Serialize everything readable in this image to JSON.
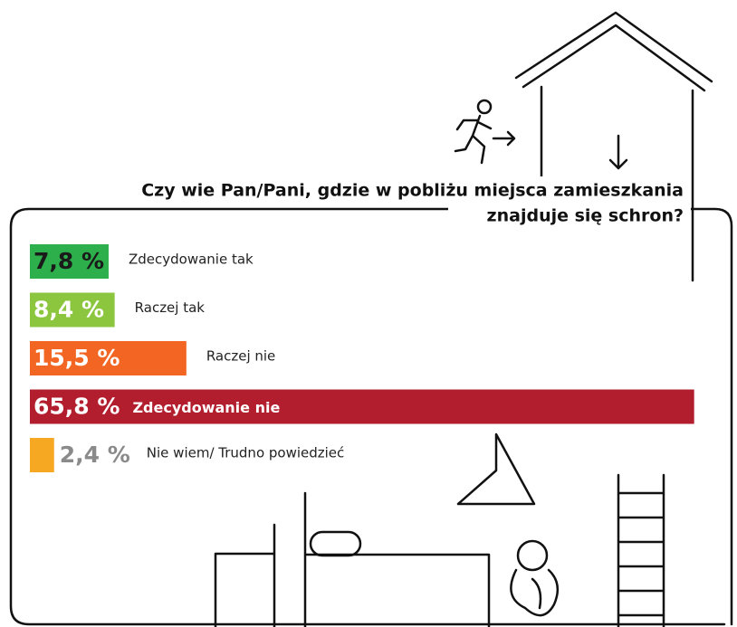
{
  "chart_data": {
    "type": "bar",
    "orientation": "horizontal",
    "title": [
      "Czy wie Pan/Pani, gdzie w pobliżu miejsca zamieszkania",
      "znajduje się schron?"
    ],
    "categories": [
      "Zdecydowanie tak",
      "Raczej tak",
      "Raczej nie",
      "Zdecydowanie nie",
      "Nie wiem/ Trudno powiedzieć"
    ],
    "values": [
      7.8,
      8.4,
      15.5,
      65.8,
      2.4
    ],
    "value_labels": [
      "7,8 %",
      "8,4 %",
      "15,5 %",
      "65,8 %",
      "2,4 %"
    ],
    "colors": [
      "#2db04b",
      "#8cc63f",
      "#f26522",
      "#b21e2e",
      "#f7a823"
    ]
  }
}
